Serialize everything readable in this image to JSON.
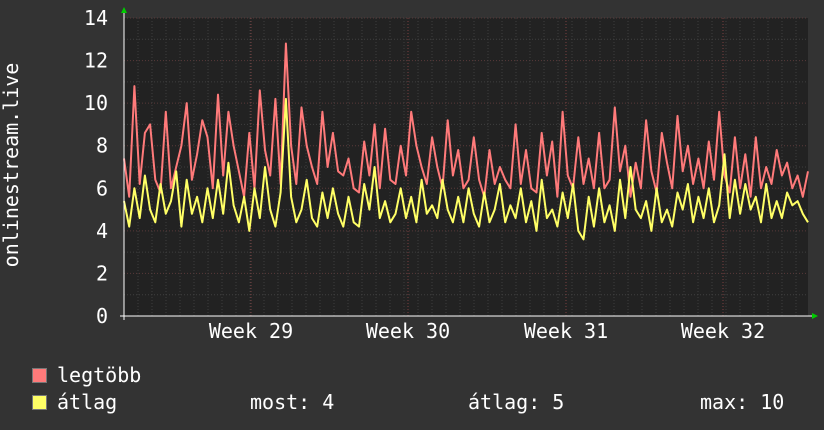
{
  "chart_data": {
    "type": "line",
    "ylabel": "onlinestream.live",
    "ylim": [
      0,
      14
    ],
    "y_ticks": [
      "0",
      "2",
      "4",
      "6",
      "8",
      "10",
      "12",
      "14"
    ],
    "x_ticks": [
      "Week 29",
      "Week 30",
      "Week 31",
      "Week 32"
    ],
    "grid": true,
    "legend_placement": "bottom-left",
    "series": [
      {
        "name": "legtöbb",
        "color": "#ff7a7a",
        "values": [
          7.4,
          5.6,
          10.8,
          6.2,
          8.6,
          9.0,
          6.4,
          5.8,
          9.6,
          6.0,
          7.0,
          8.0,
          10.0,
          6.4,
          7.6,
          9.2,
          8.4,
          6.0,
          10.4,
          6.6,
          9.6,
          8.0,
          6.8,
          5.6,
          8.6,
          6.0,
          10.6,
          7.8,
          6.6,
          10.2,
          6.2,
          12.8,
          8.0,
          6.2,
          9.8,
          8.0,
          7.0,
          6.2,
          9.6,
          7.0,
          8.6,
          6.8,
          6.6,
          7.4,
          6.0,
          5.8,
          8.2,
          6.6,
          9.0,
          6.0,
          8.8,
          6.4,
          6.2,
          8.0,
          6.6,
          9.6,
          8.0,
          7.0,
          6.2,
          8.4,
          7.0,
          6.0,
          9.2,
          6.6,
          7.8,
          6.0,
          6.4,
          8.4,
          6.4,
          5.6,
          7.8,
          6.2,
          7.0,
          6.4,
          6.0,
          9.0,
          6.2,
          7.8,
          6.0,
          5.8,
          8.6,
          6.6,
          8.2,
          5.6,
          9.6,
          6.6,
          6.0,
          8.4,
          6.2,
          7.4,
          6.0,
          8.6,
          6.0,
          6.4,
          9.8,
          6.8,
          8.0,
          5.6,
          7.2,
          6.0,
          9.2,
          6.8,
          5.8,
          8.6,
          7.2,
          6.0,
          9.4,
          6.8,
          8.0,
          6.2,
          7.4,
          6.0,
          8.2,
          6.4,
          9.6,
          6.6,
          5.8,
          8.4,
          6.0,
          7.6,
          5.6,
          8.4,
          6.0,
          7.0,
          6.2,
          7.8,
          6.6,
          7.2,
          6.0,
          6.6,
          5.6,
          6.8
        ]
      },
      {
        "name": "átlag",
        "color": "#ffff66",
        "values": [
          5.4,
          4.2,
          6.0,
          4.6,
          6.6,
          5.0,
          4.4,
          6.2,
          4.8,
          5.4,
          6.8,
          4.2,
          6.4,
          4.8,
          5.6,
          4.4,
          6.0,
          4.6,
          6.4,
          4.8,
          7.2,
          5.2,
          4.4,
          5.6,
          4.0,
          6.0,
          4.6,
          7.0,
          5.0,
          4.2,
          5.8,
          10.2,
          5.6,
          4.4,
          5.0,
          6.4,
          4.6,
          4.2,
          5.8,
          4.6,
          6.0,
          4.8,
          4.2,
          5.6,
          4.4,
          4.2,
          6.2,
          5.0,
          7.0,
          4.6,
          5.4,
          4.4,
          4.8,
          6.0,
          4.6,
          5.6,
          4.4,
          6.4,
          4.8,
          5.2,
          4.6,
          6.4,
          5.0,
          4.4,
          5.6,
          4.4,
          6.0,
          4.8,
          4.2,
          5.8,
          4.4,
          5.0,
          6.2,
          4.4,
          5.2,
          4.6,
          6.0,
          4.4,
          5.4,
          4.0,
          6.4,
          4.6,
          5.0,
          4.2,
          5.8,
          4.6,
          6.2,
          4.0,
          3.6,
          5.6,
          4.2,
          6.0,
          4.4,
          5.2,
          4.0,
          6.4,
          4.6,
          7.0,
          5.0,
          4.6,
          5.4,
          4.0,
          6.0,
          4.4,
          5.0,
          4.2,
          5.8,
          5.0,
          6.2,
          4.4,
          5.6,
          4.6,
          6.0,
          4.4,
          5.2,
          7.6,
          4.6,
          6.4,
          4.8,
          6.2,
          5.0,
          5.6,
          4.4,
          6.2,
          4.6,
          5.4,
          4.6,
          5.8,
          5.2,
          5.4,
          4.8,
          4.4
        ]
      }
    ]
  },
  "legend": [
    {
      "label": "legtöbb",
      "color": "#ff7a7a"
    },
    {
      "label": "átlag",
      "color": "#ffff66"
    }
  ],
  "stats": {
    "most": "most: 4",
    "atlag": "átlag: 5",
    "max": "max: 10"
  }
}
